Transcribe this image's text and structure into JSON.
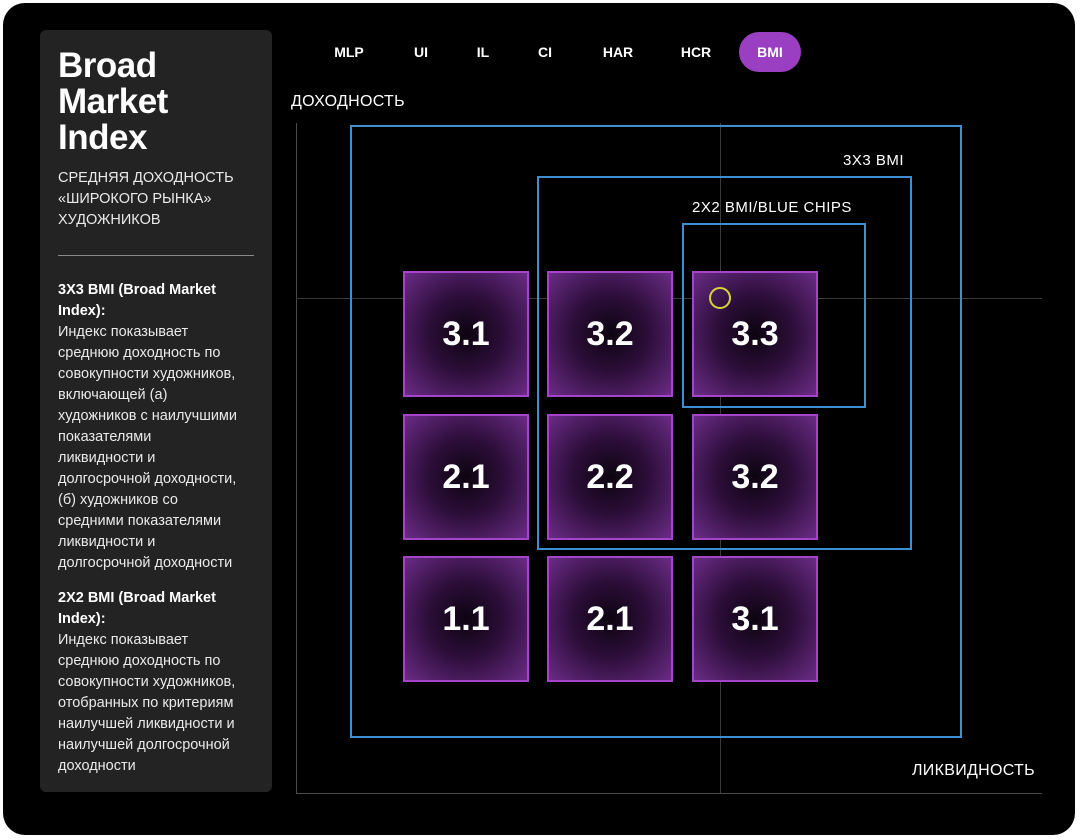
{
  "sidebar": {
    "title": "Broad\nMarket\nIndex",
    "subtitle": "СРЕДНЯЯ ДОХОДНОСТЬ\n«ШИРОКОГО РЫНКА»\nХУДОЖНИКОВ",
    "blocks": [
      {
        "title": "3Х3 BMI (Broad Market\nIndex):",
        "text": "Индекс показывает\nсреднюю доходность по\nсовокупности художников,\nвключающей (а)\nхудожников с наилучшими\nпоказателями\nликвидности и\nдолгосрочной доходности,\n(б) художников со\nсредними показателями\nликвидности и\nдолгосрочной доходности"
      },
      {
        "title": "2Х2 BMI (Broad Market\nIndex):",
        "text": "Индекс показывает\nсреднюю доходность по\nсовокупности художников,\nотобранных по критериям\nнаилучшей ликвидности и\nнаилучшей долгосрочной\nдоходности"
      }
    ]
  },
  "tabs": [
    {
      "label": "MLP",
      "active": false
    },
    {
      "label": "UI",
      "active": false
    },
    {
      "label": "IL",
      "active": false
    },
    {
      "label": "CI",
      "active": false
    },
    {
      "label": "HAR",
      "active": false
    },
    {
      "label": "HCR",
      "active": false
    },
    {
      "label": "BMI",
      "active": true
    }
  ],
  "chart": {
    "y_axis_label": "ДОХОДНОСТЬ",
    "x_axis_label": "ЛИКВИДНОСТЬ",
    "box_3x3_label": "3Х3 BMI",
    "box_2x2_label": "2Х2 BMI/BLUE CHIPS",
    "grid": [
      [
        "3.1",
        "3.2",
        "3.3"
      ],
      [
        "2.1",
        "2.2",
        "3.2"
      ],
      [
        "1.1",
        "2.1",
        "3.1"
      ]
    ],
    "accent_color": "#9b3fc2",
    "box_color": "#3d8fd1",
    "marker_color": "#d7d33a"
  }
}
